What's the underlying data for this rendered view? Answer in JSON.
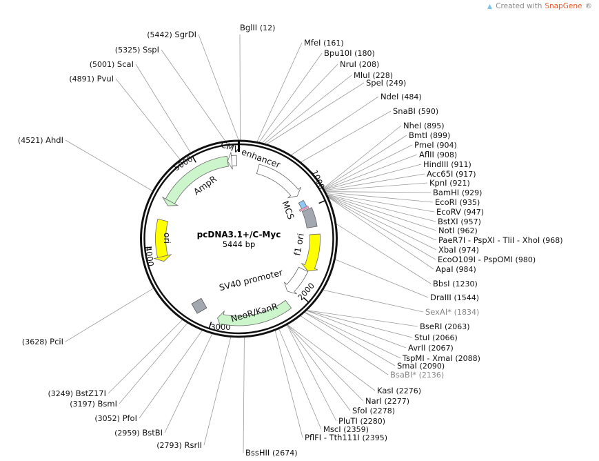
{
  "credit": {
    "prefix": "Created with ",
    "brand": "SnapGene",
    "suffix": "®",
    "icon": "snapgene-logo-icon"
  },
  "plasmid": {
    "name": "pcDNA3.1+/C-Myc",
    "length_label": "5444 bp",
    "length": 5444
  },
  "ticks": [
    "1000",
    "2000",
    "3000",
    "4000",
    "5000"
  ],
  "features": [
    {
      "name": "CMV enhancer",
      "start": 232,
      "end": 815,
      "color": "#ffffff",
      "dir": "cw"
    },
    {
      "name": "MCS",
      "start": 895,
      "end": 984,
      "color": "#8fc7f5",
      "dir": "none"
    },
    {
      "name": "",
      "start": 1010,
      "end": 1225,
      "color": "#a3a8b0",
      "dir": "none"
    },
    {
      "name": "f1 ori",
      "start": 1310,
      "end": 1740,
      "color": "#ffff00",
      "dir": "cw"
    },
    {
      "name": "SV40 promoter",
      "start": 1745,
      "end": 2075,
      "color": "#ffffff",
      "dir": "cw"
    },
    {
      "name": "NeoR/KanR",
      "start": 2160,
      "end": 2950,
      "color": "#ccf5cc",
      "dir": "cw"
    },
    {
      "name": "",
      "start": 3120,
      "end": 3250,
      "color": "#a3a8b0",
      "dir": "none"
    },
    {
      "name": "ori",
      "start": 3830,
      "end": 4290,
      "color": "#ffff00",
      "dir": "ccw"
    },
    {
      "name": "AmpR",
      "start": 4460,
      "end": 5320,
      "color": "#ccf5cc",
      "dir": "ccw"
    },
    {
      "name": "",
      "start": 5320,
      "end": 5420,
      "color": "#ffffff",
      "dir": "ccw"
    }
  ],
  "enzymes": [
    {
      "name": "BglII",
      "pos": 12
    },
    {
      "name": "MfeI",
      "pos": 161
    },
    {
      "name": "Bpu10I",
      "pos": 180
    },
    {
      "name": "NruI",
      "pos": 208
    },
    {
      "name": "MluI",
      "pos": 228
    },
    {
      "name": "SpeI",
      "pos": 249
    },
    {
      "name": "NdeI",
      "pos": 484
    },
    {
      "name": "SnaBI",
      "pos": 590
    },
    {
      "name": "NheI",
      "pos": 895
    },
    {
      "name": "BmtI",
      "pos": 899
    },
    {
      "name": "PmeI",
      "pos": 904
    },
    {
      "name": "AflII",
      "pos": 908
    },
    {
      "name": "HindIII",
      "pos": 911
    },
    {
      "name": "Acc65I",
      "pos": 917
    },
    {
      "name": "KpnI",
      "pos": 921
    },
    {
      "name": "BamHI",
      "pos": 929
    },
    {
      "name": "EcoRI",
      "pos": 935
    },
    {
      "name": "EcoRV",
      "pos": 947
    },
    {
      "name": "BstXI",
      "pos": 957
    },
    {
      "name": "NotI",
      "pos": 962
    },
    {
      "name": "PaeR7I - PspXI - TliI - XhoI",
      "pos": 968
    },
    {
      "name": "XbaI",
      "pos": 974
    },
    {
      "name": "EcoO109I - PspOMI",
      "pos": 980
    },
    {
      "name": "ApaI",
      "pos": 984
    },
    {
      "name": "BbsI",
      "pos": 1230
    },
    {
      "name": "DraIII",
      "pos": 1544
    },
    {
      "name": "SexAI*",
      "pos": 1834,
      "gray": true
    },
    {
      "name": "BseRI",
      "pos": 2063
    },
    {
      "name": "StuI",
      "pos": 2066
    },
    {
      "name": "AvrII",
      "pos": 2067
    },
    {
      "name": "TspMI - XmaI",
      "pos": 2088
    },
    {
      "name": "SmaI",
      "pos": 2090
    },
    {
      "name": "BsaBI*",
      "pos": 2136,
      "gray": true
    },
    {
      "name": "KasI",
      "pos": 2276
    },
    {
      "name": "NarI",
      "pos": 2277
    },
    {
      "name": "SfoI",
      "pos": 2278
    },
    {
      "name": "PluTI",
      "pos": 2280
    },
    {
      "name": "MscI",
      "pos": 2359
    },
    {
      "name": "PflFI - Tth111I",
      "pos": 2395
    },
    {
      "name": "BssHII",
      "pos": 2674
    },
    {
      "name": "RsrII",
      "pos": 2793
    },
    {
      "name": "BstBI",
      "pos": 2959
    },
    {
      "name": "PfoI",
      "pos": 3052
    },
    {
      "name": "BsmI",
      "pos": 3197
    },
    {
      "name": "BstZ17I",
      "pos": 3249
    },
    {
      "name": "PciI",
      "pos": 3628
    },
    {
      "name": "AhdI",
      "pos": 4521
    },
    {
      "name": "PvuI",
      "pos": 4891
    },
    {
      "name": "ScaI",
      "pos": 5001
    },
    {
      "name": "SspI",
      "pos": 5325
    },
    {
      "name": "SgrDI",
      "pos": 5442
    }
  ]
}
